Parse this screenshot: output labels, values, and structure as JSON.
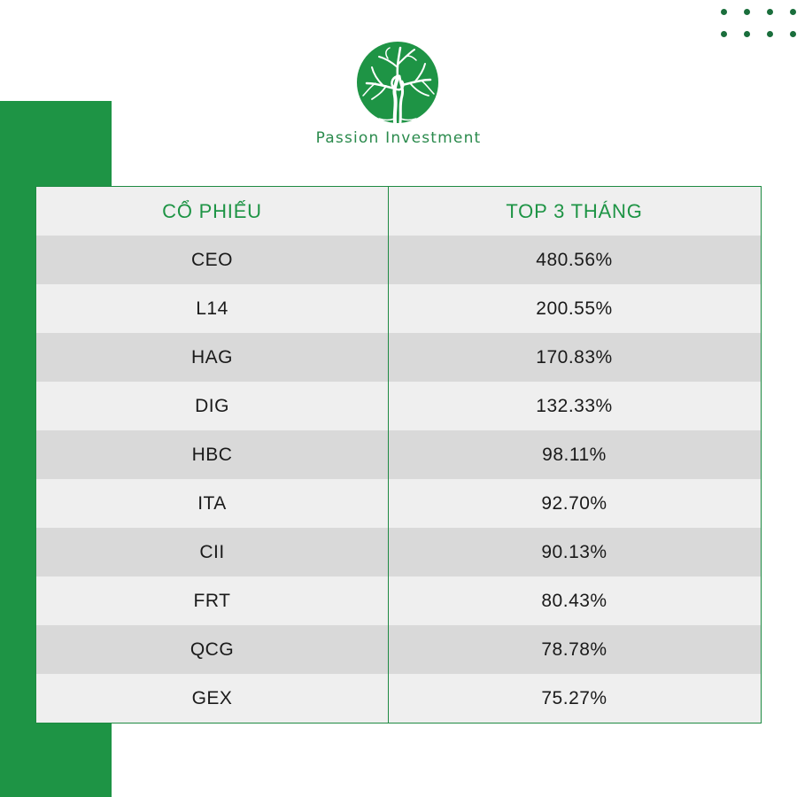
{
  "brand": {
    "name": "Passion Investment",
    "logo_icon": "tree-icon",
    "accent_color": "#1e9445"
  },
  "table": {
    "headers": {
      "stock": "CỔ PHIẾU",
      "top_3_months": "TOP 3 THÁNG"
    },
    "rows": [
      {
        "ticker": "CEO",
        "change": "480.56%"
      },
      {
        "ticker": "L14",
        "change": "200.55%"
      },
      {
        "ticker": "HAG",
        "change": "170.83%"
      },
      {
        "ticker": "DIG",
        "change": "132.33%"
      },
      {
        "ticker": "HBC",
        "change": "98.11%"
      },
      {
        "ticker": "ITA",
        "change": "92.70%"
      },
      {
        "ticker": "CII",
        "change": "90.13%"
      },
      {
        "ticker": "FRT",
        "change": "80.43%"
      },
      {
        "ticker": "QCG",
        "change": "78.78%"
      },
      {
        "ticker": "GEX",
        "change": "75.27%"
      }
    ]
  }
}
